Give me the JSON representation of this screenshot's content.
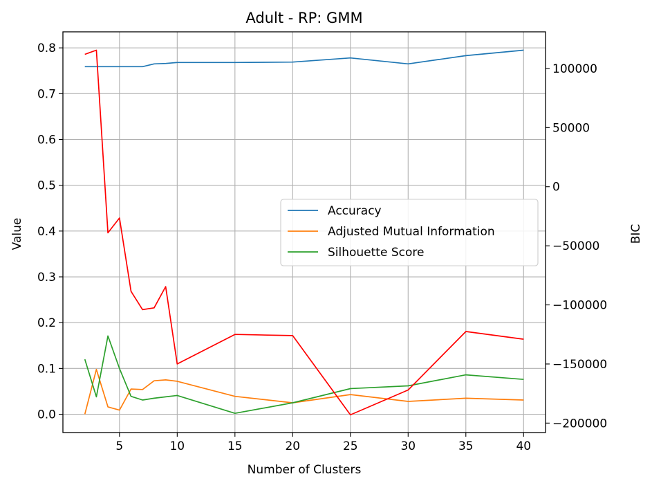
{
  "chart_data": {
    "type": "line",
    "title": "Adult - RP: GMM",
    "xlabel": "Number of Clusters",
    "ylabel": "Value",
    "y2label": "BIC",
    "x": [
      2,
      3,
      4,
      5,
      6,
      7,
      8,
      9,
      10,
      15,
      20,
      25,
      30,
      35,
      40
    ],
    "xlim": [
      0.1,
      41.9
    ],
    "ylim": [
      -0.04,
      0.835
    ],
    "y2lim": [
      -208000,
      131000
    ],
    "xticks": [
      5,
      10,
      15,
      20,
      25,
      30,
      35,
      40
    ],
    "yticks": [
      0.0,
      0.1,
      0.2,
      0.3,
      0.4,
      0.5,
      0.6,
      0.7,
      0.8
    ],
    "ytick_labels": [
      "0.0",
      "0.1",
      "0.2",
      "0.3",
      "0.4",
      "0.5",
      "0.6",
      "0.7",
      "0.8"
    ],
    "y2ticks": [
      -200000,
      -150000,
      -100000,
      -50000,
      0,
      50000,
      100000
    ],
    "y2tick_labels": [
      "−200000",
      "−150000",
      "−100000",
      "−50000",
      "0",
      "50000",
      "100000"
    ],
    "grid": true,
    "legend_position": "center-right",
    "series": [
      {
        "name": "Accuracy",
        "axis": "left",
        "color": "#1f77b4",
        "values": [
          0.759,
          0.759,
          0.759,
          0.759,
          0.759,
          0.759,
          0.765,
          0.766,
          0.768,
          0.768,
          0.769,
          0.778,
          0.765,
          0.783,
          0.795
        ]
      },
      {
        "name": "Adjusted Mutual Information",
        "axis": "left",
        "color": "#ff7f0e",
        "values": [
          0.0,
          0.098,
          0.016,
          0.009,
          0.055,
          0.054,
          0.073,
          0.075,
          0.072,
          0.039,
          0.025,
          0.043,
          0.028,
          0.035,
          0.031
        ]
      },
      {
        "name": "Silhouette Score",
        "axis": "left",
        "color": "#2ca02c",
        "values": [
          0.12,
          0.038,
          0.171,
          0.1,
          0.039,
          0.031,
          0.035,
          0.038,
          0.041,
          0.002,
          0.025,
          0.056,
          0.062,
          0.086,
          0.076
        ]
      },
      {
        "axis": "right",
        "color": "#ff0000",
        "values": [
          112000,
          115500,
          -39000,
          -26500,
          -88500,
          -104000,
          -102500,
          -84500,
          -150000,
          -125000,
          -126000,
          -193000,
          -172000,
          -122500,
          -129000
        ]
      }
    ]
  }
}
